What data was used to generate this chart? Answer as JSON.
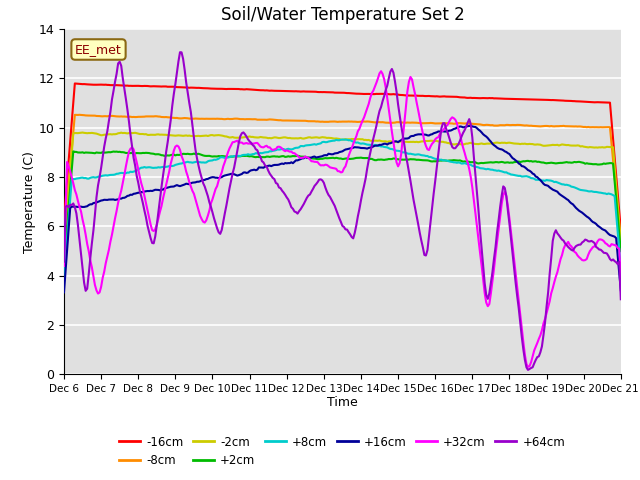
{
  "title": "Soil/Water Temperature Set 2",
  "xlabel": "Time",
  "ylabel": "Temperature (C)",
  "ylim": [
    0,
    14
  ],
  "x_tick_labels": [
    "Dec 6",
    "Dec 7",
    "Dec 8",
    "Dec 9",
    "Dec 10",
    "Dec 11",
    "Dec 12",
    "Dec 13",
    "Dec 14",
    "Dec 15",
    "Dec 16",
    "Dec 17",
    "Dec 18",
    "Dec 19",
    "Dec 20",
    "Dec 21"
  ],
  "annotation_text": "EE_met",
  "annotation_color": "#8B0000",
  "annotation_bg": "#FFFFC0",
  "annotation_border": "#8B6914",
  "series_colors": {
    "-16cm": "#FF0000",
    "-8cm": "#FF8C00",
    "-2cm": "#CCCC00",
    "+2cm": "#00BB00",
    "+8cm": "#00CCCC",
    "+16cm": "#000099",
    "+32cm": "#FF00FF",
    "+64cm": "#9900CC"
  },
  "bg_color": "#FFFFFF",
  "plot_bg_color": "#E0E0E0",
  "grid_color": "#FFFFFF",
  "title_fontsize": 12,
  "n_points": 361
}
